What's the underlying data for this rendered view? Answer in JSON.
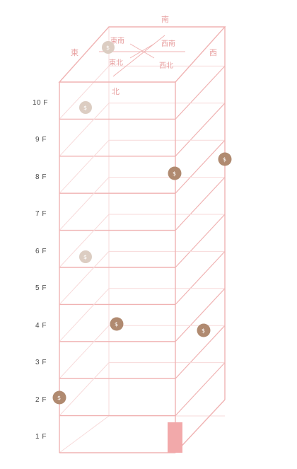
{
  "building": {
    "floors": [
      "1 F",
      "2 F",
      "3 F",
      "4 F",
      "5 F",
      "6 F",
      "7 F",
      "8 F",
      "9 F",
      "10 F"
    ]
  },
  "compass": {
    "south": "南",
    "east": "東",
    "west": "西",
    "north": "北",
    "southeast": "東南",
    "southwest": "西南",
    "northeast": "東北",
    "northwest": "西北"
  },
  "coins": {
    "symbol": "$",
    "color_dark": "#b08a70",
    "color_light": "#dccdc2"
  },
  "colors": {
    "line": "#f0b3b3",
    "line_faint": "#f7dada",
    "door": "#f2a9aa",
    "floor_label": "#4a4a4a"
  }
}
